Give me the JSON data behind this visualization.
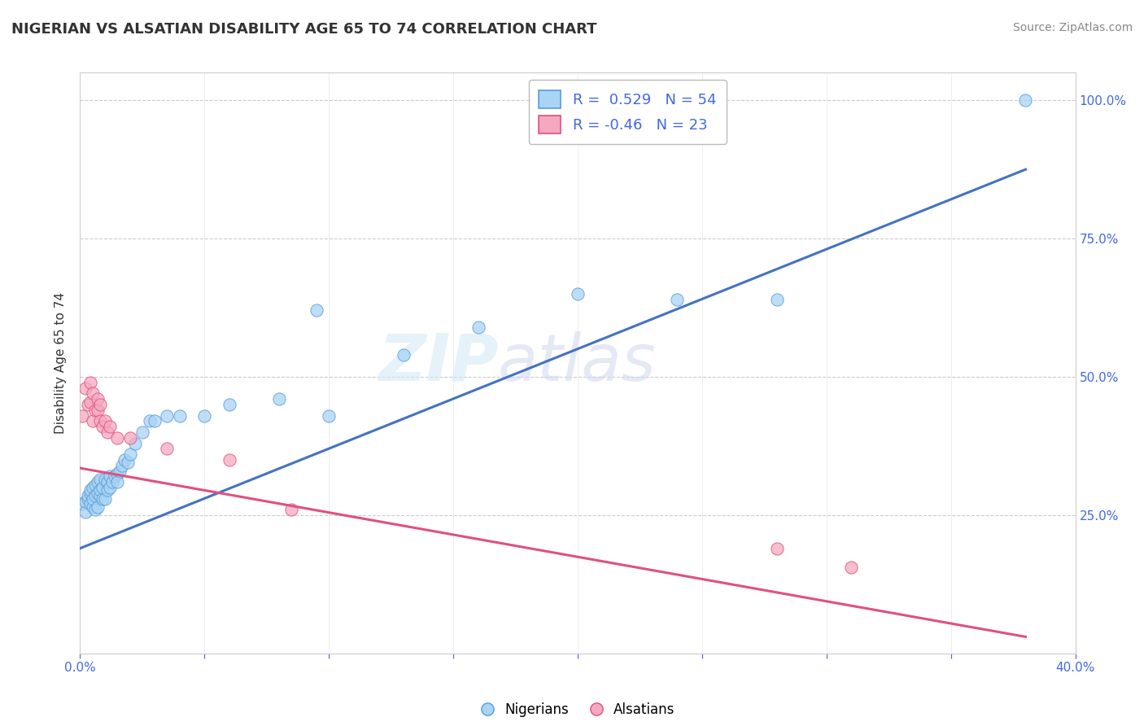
{
  "title": "NIGERIAN VS ALSATIAN DISABILITY AGE 65 TO 74 CORRELATION CHART",
  "source_text": "Source: ZipAtlas.com",
  "ylabel": "Disability Age 65 to 74",
  "x_min": 0.0,
  "x_max": 0.4,
  "y_min": 0.0,
  "y_max": 1.05,
  "x_ticks": [
    0.0,
    0.05,
    0.1,
    0.15,
    0.2,
    0.25,
    0.3,
    0.35,
    0.4
  ],
  "x_ticklabels": [
    "0.0%",
    "",
    "",
    "",
    "",
    "",
    "",
    "",
    "40.0%"
  ],
  "y_ticks": [
    0.25,
    0.5,
    0.75,
    1.0
  ],
  "y_ticklabels": [
    "25.0%",
    "50.0%",
    "75.0%",
    "100.0%"
  ],
  "nigerian_color": "#a8d4f5",
  "alsatian_color": "#f5a8c0",
  "nigerian_edge_color": "#5b9bd5",
  "alsatian_edge_color": "#e05080",
  "nigerian_line_color": "#4472c4",
  "alsatian_line_color": "#e05080",
  "R_nigerian": 0.529,
  "N_nigerian": 54,
  "R_alsatian": -0.46,
  "N_alsatian": 23,
  "watermark_part1": "ZIP",
  "watermark_part2": "atlas",
  "nigerian_scatter_x": [
    0.001,
    0.002,
    0.002,
    0.003,
    0.003,
    0.004,
    0.004,
    0.004,
    0.005,
    0.005,
    0.005,
    0.006,
    0.006,
    0.006,
    0.007,
    0.007,
    0.007,
    0.008,
    0.008,
    0.008,
    0.009,
    0.009,
    0.01,
    0.01,
    0.011,
    0.011,
    0.012,
    0.012,
    0.013,
    0.014,
    0.015,
    0.015,
    0.016,
    0.017,
    0.018,
    0.019,
    0.02,
    0.022,
    0.025,
    0.028,
    0.03,
    0.035,
    0.04,
    0.05,
    0.06,
    0.08,
    0.1,
    0.13,
    0.16,
    0.2,
    0.24,
    0.28,
    0.095,
    0.38
  ],
  "nigerian_scatter_y": [
    0.27,
    0.255,
    0.275,
    0.28,
    0.285,
    0.27,
    0.29,
    0.295,
    0.265,
    0.28,
    0.3,
    0.26,
    0.285,
    0.305,
    0.265,
    0.29,
    0.31,
    0.285,
    0.295,
    0.315,
    0.28,
    0.3,
    0.28,
    0.315,
    0.295,
    0.31,
    0.3,
    0.32,
    0.31,
    0.32,
    0.325,
    0.31,
    0.33,
    0.34,
    0.35,
    0.345,
    0.36,
    0.38,
    0.4,
    0.42,
    0.42,
    0.43,
    0.43,
    0.43,
    0.45,
    0.46,
    0.43,
    0.54,
    0.59,
    0.65,
    0.64,
    0.64,
    0.62,
    1.0
  ],
  "alsatian_scatter_x": [
    0.001,
    0.002,
    0.003,
    0.004,
    0.004,
    0.005,
    0.005,
    0.006,
    0.007,
    0.007,
    0.008,
    0.008,
    0.009,
    0.01,
    0.011,
    0.012,
    0.015,
    0.02,
    0.035,
    0.06,
    0.085,
    0.28,
    0.31
  ],
  "alsatian_scatter_y": [
    0.43,
    0.48,
    0.45,
    0.455,
    0.49,
    0.42,
    0.47,
    0.44,
    0.44,
    0.46,
    0.42,
    0.45,
    0.41,
    0.42,
    0.4,
    0.41,
    0.39,
    0.39,
    0.37,
    0.35,
    0.26,
    0.19,
    0.155
  ],
  "nigerian_line_x": [
    0.0,
    0.38
  ],
  "nigerian_line_y": [
    0.19,
    0.875
  ],
  "alsatian_line_x": [
    0.0,
    0.38
  ],
  "alsatian_line_y": [
    0.335,
    0.03
  ],
  "background_color": "#FFFFFF",
  "grid_color": "#CCCCCC",
  "grid_style": "--",
  "title_color": "#333333",
  "legend_text_color": "#4169E1",
  "tick_color": "#4169E1"
}
